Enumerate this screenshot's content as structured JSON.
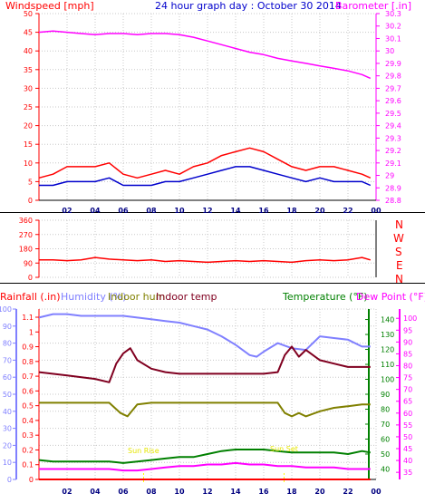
{
  "chart_data": [
    {
      "panel": "wind-barometer",
      "type": "line",
      "title": "24 hour graph day : October 30 2014",
      "left_axis_label": "Windspeed [mph]",
      "right_axis_label": "Barometer [.in]",
      "left_ticks": [
        "0",
        "5",
        "10",
        "15",
        "20",
        "25",
        "30",
        "35",
        "40",
        "45",
        "50"
      ],
      "left_range": [
        0,
        50
      ],
      "right_ticks": [
        "28.8",
        "28.9",
        "29",
        "29.1",
        "29.2",
        "29.3",
        "29.4",
        "29.5",
        "29.6",
        "29.7",
        "29.8",
        "29.9",
        "30",
        "30.1",
        "30.2",
        "30.3"
      ],
      "right_range": [
        28.8,
        30.3
      ],
      "x_ticks": [
        "02",
        "04",
        "06",
        "08",
        "10",
        "12",
        "14",
        "16",
        "18",
        "20",
        "22",
        "00"
      ],
      "x_range_hours": [
        0,
        24
      ],
      "grid": true,
      "colors": {
        "gust": "#ff0000",
        "wind": "#0000cc",
        "barometer": "#ff00ff",
        "left_axis": "#ff0000",
        "right_axis": "#ff00ff",
        "title": "#0000cc"
      },
      "series": [
        {
          "role": "gust",
          "x": [
            0,
            1,
            2,
            3,
            4,
            5,
            6,
            7,
            8,
            9,
            10,
            11,
            12,
            13,
            14,
            15,
            16,
            17,
            18,
            19,
            20,
            21,
            22,
            23,
            23.6
          ],
          "values": [
            6,
            7,
            9,
            9,
            9,
            10,
            7,
            6,
            7,
            8,
            7,
            9,
            10,
            12,
            13,
            14,
            13,
            11,
            9,
            8,
            9,
            9,
            8,
            7,
            6
          ]
        },
        {
          "role": "wind",
          "x": [
            0,
            1,
            2,
            3,
            4,
            5,
            6,
            7,
            8,
            9,
            10,
            11,
            12,
            13,
            14,
            15,
            16,
            17,
            18,
            19,
            20,
            21,
            22,
            23,
            23.6
          ],
          "values": [
            4,
            4,
            5,
            5,
            5,
            6,
            4,
            4,
            4,
            5,
            5,
            6,
            7,
            8,
            9,
            9,
            8,
            7,
            6,
            5,
            6,
            5,
            5,
            5,
            4
          ]
        },
        {
          "role": "barometer",
          "x": [
            0,
            1,
            2,
            3,
            4,
            5,
            6,
            7,
            8,
            9,
            10,
            11,
            12,
            13,
            14,
            15,
            16,
            17,
            18,
            19,
            20,
            21,
            22,
            23,
            23.6
          ],
          "values": [
            30.15,
            30.16,
            30.15,
            30.14,
            30.13,
            30.14,
            30.14,
            30.13,
            30.14,
            30.14,
            30.13,
            30.11,
            30.08,
            30.05,
            30.02,
            29.99,
            29.97,
            29.94,
            29.92,
            29.9,
            29.88,
            29.86,
            29.84,
            29.81,
            29.78
          ]
        }
      ]
    },
    {
      "panel": "wind-direction",
      "type": "line",
      "left_ticks": [
        "0",
        "90",
        "180",
        "270",
        "360"
      ],
      "left_range": [
        0,
        360
      ],
      "direction_labels": [
        "N",
        "W",
        "S",
        "E",
        "N"
      ],
      "grid": true,
      "colors": {
        "direction": "#ff0000",
        "axis": "#ff0000"
      },
      "series": [
        {
          "role": "direction",
          "x": [
            0,
            1,
            2,
            3,
            4,
            5,
            6,
            7,
            8,
            9,
            10,
            11,
            12,
            13,
            14,
            15,
            16,
            17,
            18,
            19,
            20,
            21,
            22,
            23,
            23.6
          ],
          "values": [
            110,
            110,
            105,
            110,
            125,
            115,
            110,
            105,
            110,
            100,
            105,
            100,
            95,
            100,
            105,
            100,
            105,
            100,
            95,
            105,
            110,
            105,
            110,
            125,
            110
          ]
        }
      ]
    },
    {
      "panel": "climate",
      "type": "line",
      "labels": {
        "rainfall": "Rainfall (.in)",
        "humidity": "Humidity (%)",
        "indoor_hum": "Indoor hum",
        "indoor_temp": "Indoor temp",
        "temperature": "Temperature (°F)",
        "dew_point": "Dew Point (°F)"
      },
      "humidity_ticks": [
        "0",
        "10",
        "20",
        "30",
        "40",
        "50",
        "60",
        "70",
        "80",
        "90",
        "100"
      ],
      "rain_ticks": [
        "0",
        "0.1",
        "0.2",
        "0.3",
        "0.4",
        "0.5",
        "0.6",
        "0.7",
        "0.8",
        "0.9",
        "1",
        "1.1"
      ],
      "temperature_ticks": [
        "40",
        "50",
        "60",
        "70",
        "80",
        "90",
        "100",
        "110",
        "120",
        "130",
        "140"
      ],
      "temperature_range": [
        33,
        147
      ],
      "dew_ticks": [
        "35",
        "40",
        "45",
        "50",
        "55",
        "60",
        "65",
        "70",
        "75",
        "80",
        "85",
        "90",
        "95",
        "100"
      ],
      "x_ticks": [
        "02",
        "04",
        "06",
        "08",
        "10",
        "12",
        "14",
        "16",
        "18",
        "20",
        "22",
        "00"
      ],
      "sun_labels": [
        "Sun Rise",
        "Sun Set"
      ],
      "grid": true,
      "colors": {
        "humidity": "#8080ff",
        "indoor_hum": "#808000",
        "indoor_temp": "#800020",
        "temperature": "#008000",
        "dew_point": "#ff00ff",
        "rainfall": "#ff0000",
        "sun": "#ffff00"
      },
      "series": [
        {
          "name": "Humidity (%)",
          "axis": "humidity",
          "x": [
            0,
            1,
            2,
            3,
            4,
            5,
            6,
            7,
            8,
            9,
            10,
            11,
            12,
            13,
            14,
            15,
            15.5,
            16,
            17,
            18,
            19,
            20,
            21,
            22,
            23,
            23.6
          ],
          "values": [
            95,
            97,
            97,
            96,
            96,
            96,
            96,
            95,
            94,
            93,
            92,
            90,
            88,
            84,
            79,
            73,
            72,
            75,
            80,
            77,
            76,
            84,
            83,
            82,
            78,
            78
          ]
        },
        {
          "name": "Indoor hum",
          "axis": "humidity",
          "x": [
            0,
            1,
            2,
            3,
            4,
            5,
            5.8,
            6.3,
            7,
            8,
            9,
            10,
            11,
            12,
            13,
            14,
            15,
            16,
            17,
            17.5,
            18,
            18.5,
            19,
            20,
            21,
            22,
            23,
            23.6
          ],
          "values": [
            45,
            45,
            45,
            45,
            45,
            45,
            39,
            37,
            44,
            45,
            45,
            45,
            45,
            45,
            45,
            45,
            45,
            45,
            45,
            39,
            37,
            39,
            37,
            40,
            42,
            43,
            44,
            44
          ]
        },
        {
          "name": "Indoor temp",
          "axis": "humidity",
          "x": [
            0,
            2,
            4,
            5,
            5.5,
            6,
            6.5,
            7,
            8,
            9,
            10,
            11,
            12,
            13,
            14,
            15,
            16,
            17,
            17.5,
            18,
            18.5,
            19,
            20,
            21,
            22,
            23,
            23.6
          ],
          "values": [
            63,
            61,
            59,
            57,
            68,
            74,
            77,
            70,
            65,
            63,
            62,
            62,
            62,
            62,
            62,
            62,
            62,
            63,
            73,
            78,
            72,
            76,
            70,
            68,
            66,
            66,
            66
          ]
        },
        {
          "name": "Temperature (°F)",
          "axis": "temperature",
          "x": [
            0,
            1,
            2,
            3,
            4,
            5,
            6,
            7,
            8,
            9,
            10,
            11,
            12,
            13,
            14,
            15,
            16,
            17,
            18,
            19,
            20,
            21,
            22,
            23,
            23.6
          ],
          "values": [
            46,
            45,
            45,
            45,
            45,
            45,
            44,
            45,
            46,
            47,
            48,
            48,
            50,
            52,
            53,
            53,
            53,
            52,
            51,
            51,
            51,
            51,
            50,
            52,
            51
          ]
        },
        {
          "name": "Dew Point (°F)",
          "axis": "temperature",
          "x": [
            0,
            1,
            2,
            3,
            4,
            5,
            6,
            7,
            8,
            9,
            10,
            11,
            12,
            13,
            14,
            15,
            16,
            17,
            18,
            19,
            20,
            21,
            22,
            23,
            23.6
          ],
          "values": [
            40,
            40,
            40,
            40,
            40,
            40,
            39,
            39,
            40,
            41,
            42,
            42,
            43,
            43,
            44,
            43,
            43,
            42,
            42,
            41,
            41,
            41,
            40,
            40,
            40
          ]
        },
        {
          "name": "Rainfall (.in)",
          "axis": "rain",
          "x": [
            0,
            23.6
          ],
          "values": [
            0,
            0
          ]
        }
      ]
    }
  ]
}
